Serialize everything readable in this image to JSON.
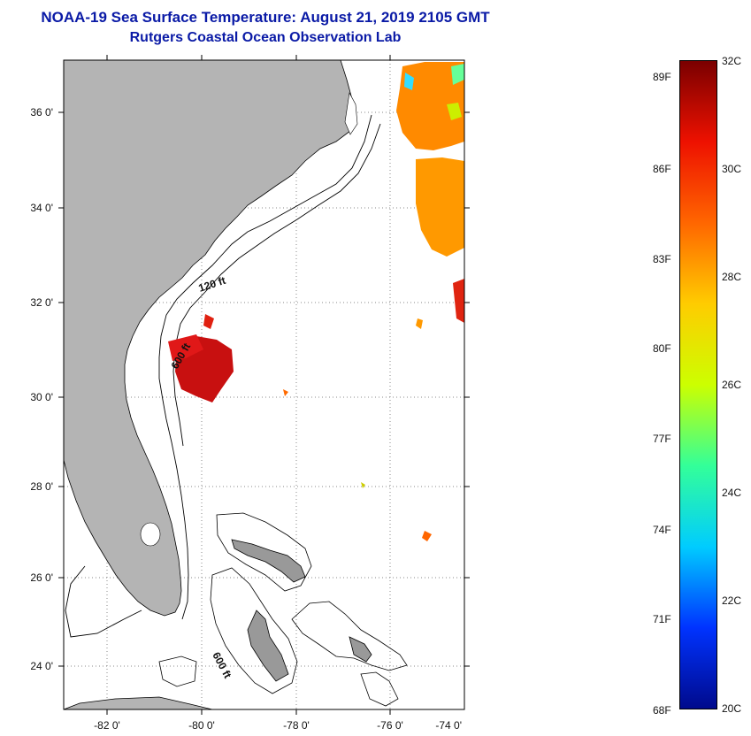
{
  "header": {
    "title": "NOAA-19 Sea Surface Temperature:  August 21, 2019 2105 GMT",
    "subtitle": "Rutgers Coastal Ocean Observation Lab"
  },
  "map": {
    "lat_ticks": [
      "36 0'",
      "34 0'",
      "32 0'",
      "30 0'",
      "28 0'",
      "26 0'",
      "24 0'"
    ],
    "lon_ticks": [
      "-82 0'",
      "-80 0'",
      "-78 0'",
      "-76 0'",
      "-74 0'"
    ],
    "contour_labels": [
      "120 ft",
      "600 ft",
      "600 ft"
    ],
    "land_color": "#b4b4b4"
  },
  "colorbar": {
    "fahrenheit": [
      "89F",
      "86F",
      "83F",
      "80F",
      "77F",
      "74F",
      "71F",
      "68F"
    ],
    "celsius": [
      "32C",
      "30C",
      "28C",
      "26C",
      "24C",
      "22C",
      "20C"
    ],
    "range_c": [
      20,
      32
    ],
    "colors": [
      "#000a8c",
      "#0033ff",
      "#00ccff",
      "#33ff99",
      "#ccff00",
      "#ffcc00",
      "#ff6600",
      "#ee1100",
      "#7a0000"
    ]
  }
}
